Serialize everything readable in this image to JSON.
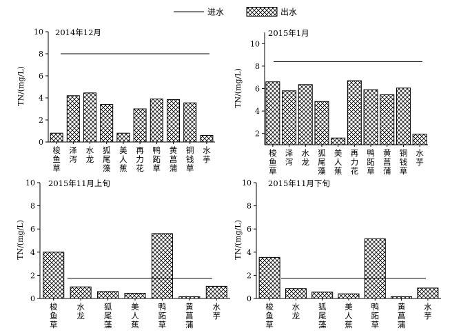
{
  "legend": {
    "inflow_label": "进水",
    "outflow_label": "出水"
  },
  "chart_data": [
    {
      "type": "bar",
      "title": "2014年12月",
      "ylabel": "TN/(mg/L)",
      "ylim": [
        0,
        10
      ],
      "yticks": [
        0,
        2,
        4,
        6,
        8,
        10
      ],
      "categories": [
        "梭鱼草",
        "泽泻",
        "水龙",
        "狐尾藻",
        "美人蕉",
        "再力花",
        "鸭跖草",
        "黄菖蒲",
        "铜钱草",
        "水芋"
      ],
      "series": [
        {
          "name": "出水",
          "values": [
            0.8,
            4.2,
            4.45,
            3.4,
            0.8,
            3.0,
            3.9,
            3.85,
            3.55,
            0.6
          ]
        },
        {
          "name": "进水",
          "level": 8.0
        }
      ]
    },
    {
      "type": "bar",
      "title": "2015年1月",
      "ylabel": "TN/(mg/L)",
      "ylim": [
        1,
        11
      ],
      "yticks": [
        2,
        4,
        6,
        8,
        10
      ],
      "categories": [
        "梭鱼草",
        "泽泻",
        "水龙",
        "狐尾藻",
        "美人蕉",
        "再力花",
        "鸭跖草",
        "黄菖蒲",
        "铜钱草",
        "水芋"
      ],
      "series": [
        {
          "name": "出水",
          "values": [
            6.6,
            5.8,
            6.35,
            4.85,
            1.6,
            6.7,
            5.9,
            5.45,
            6.05,
            1.95
          ]
        },
        {
          "name": "进水",
          "level": 8.4
        }
      ]
    },
    {
      "type": "bar",
      "title": "2015年11月上旬",
      "ylabel": "TN/(mg/L)",
      "ylim": [
        0,
        10
      ],
      "yticks": [
        0,
        2,
        4,
        6,
        8,
        10
      ],
      "categories": [
        "梭鱼草",
        "水龙",
        "狐尾藻",
        "美人蕉",
        "鸭跖草",
        "黄菖蒲",
        "水芋"
      ],
      "series": [
        {
          "name": "出水",
          "values": [
            4.0,
            1.0,
            0.6,
            0.45,
            5.6,
            0.15,
            1.05
          ]
        },
        {
          "name": "进水",
          "level": 1.75
        }
      ]
    },
    {
      "type": "bar",
      "title": "2015年11月下旬",
      "ylabel": "TN/(mg/L)",
      "ylim": [
        0,
        10
      ],
      "yticks": [
        0,
        2,
        4,
        6,
        8,
        10
      ],
      "categories": [
        "梭鱼草",
        "水龙",
        "狐尾藻",
        "美人蕉",
        "鸭跖草",
        "黄菖蒲",
        "水芋"
      ],
      "series": [
        {
          "name": "出水",
          "values": [
            3.55,
            0.85,
            0.55,
            0.4,
            5.15,
            0.15,
            0.9
          ]
        },
        {
          "name": "进水",
          "level": 1.75
        }
      ]
    }
  ]
}
